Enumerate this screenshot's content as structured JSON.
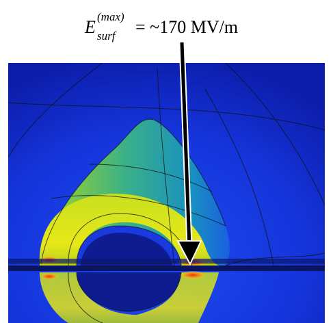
{
  "annotation": {
    "symbol": "E",
    "superscript": "(max)",
    "subscript": "surf",
    "text": "= ~170 MV/m"
  }
}
